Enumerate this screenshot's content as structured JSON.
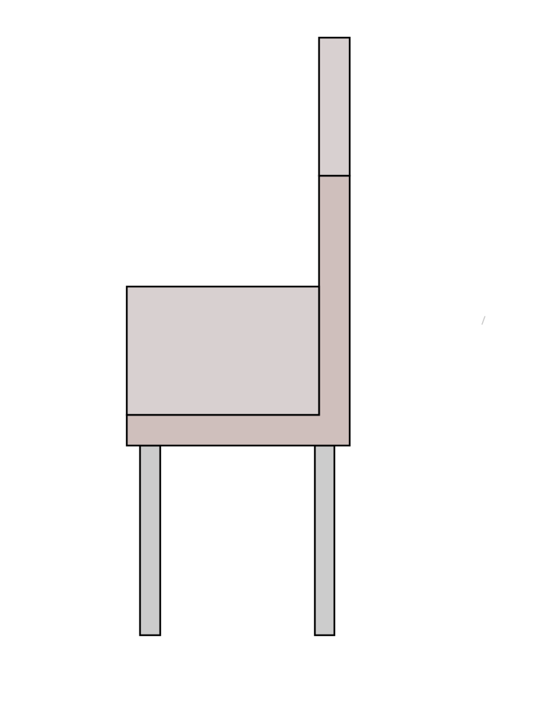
{
  "drawing": {
    "subject": "chair-side-view",
    "parts": [
      {
        "name": "backrest-upper",
        "color": "#d8d0d0"
      },
      {
        "name": "backrest-lower-and-frame",
        "color": "#cfbfbc"
      },
      {
        "name": "seat-cushion",
        "color": "#d8d0d0"
      },
      {
        "name": "front-leg",
        "color": "#cccccc"
      },
      {
        "name": "back-leg",
        "color": "#cccccc"
      }
    ],
    "outline_color": "#000000",
    "background_color": "#ffffff"
  }
}
